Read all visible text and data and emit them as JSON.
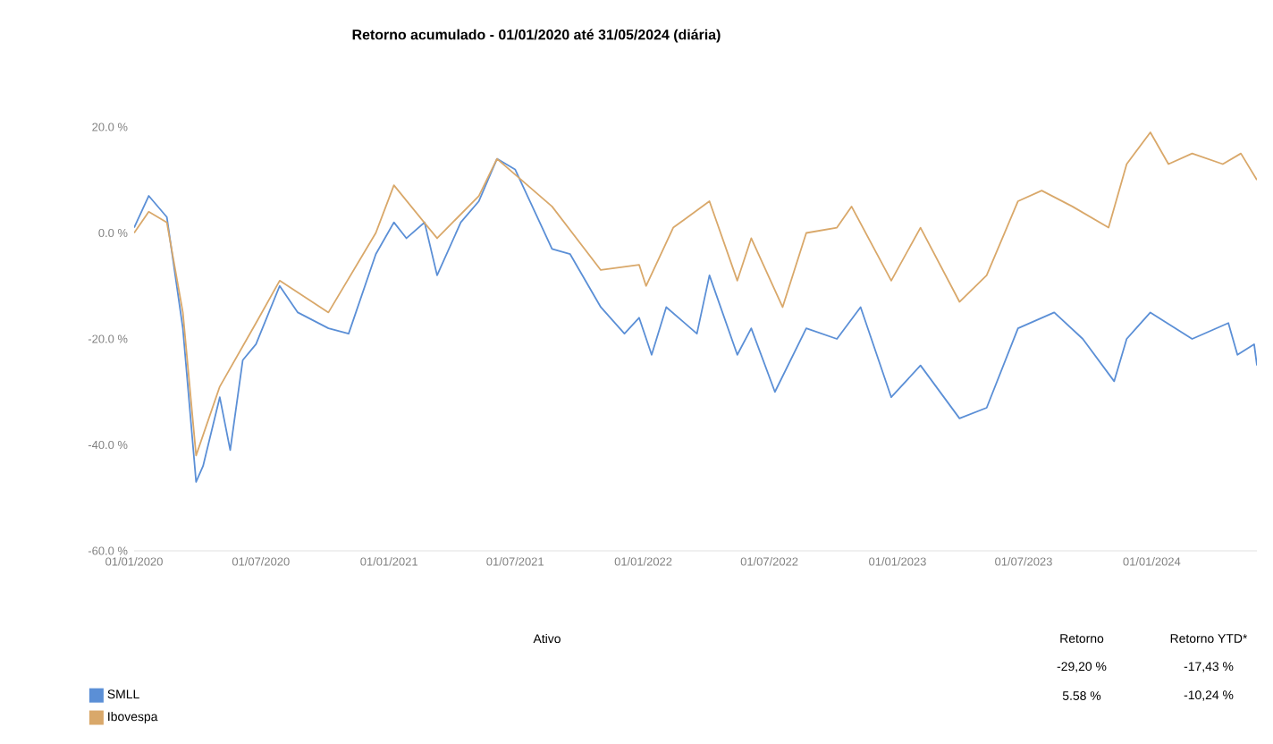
{
  "chart_data": {
    "type": "line",
    "title": "Retorno acumulado - 01/01/2020 até 31/05/2024 (diária)",
    "x": [
      "2020-01-01",
      "2020-01-22",
      "2020-02-17",
      "2020-03-11",
      "2020-03-30",
      "2020-04-09",
      "2020-05-03",
      "2020-05-18",
      "2020-06-05",
      "2020-06-24",
      "2020-07-28",
      "2020-08-23",
      "2020-10-06",
      "2020-11-04",
      "2020-12-13",
      "2021-01-08",
      "2021-01-26",
      "2021-02-21",
      "2021-03-11",
      "2021-04-14",
      "2021-05-10",
      "2021-06-05",
      "2021-07-01",
      "2021-08-23",
      "2021-09-18",
      "2021-11-01",
      "2021-12-05",
      "2021-12-26",
      "2022-01-13",
      "2022-02-03",
      "2022-03-19",
      "2022-04-06",
      "2022-05-16",
      "2022-06-05",
      "2022-07-09",
      "2022-08-23",
      "2022-10-06",
      "2022-11-09",
      "2022-12-23",
      "2023-02-03",
      "2023-03-31",
      "2023-05-09",
      "2023-06-23",
      "2023-08-14",
      "2023-09-24",
      "2023-11-08",
      "2023-11-26",
      "2023-12-30",
      "2024-02-28",
      "2024-04-20",
      "2024-05-03",
      "2024-05-27",
      "2024-05-31"
    ],
    "series": [
      {
        "name": "SMLL",
        "color": "#5b8fd6",
        "values": [
          1,
          7,
          3,
          -18,
          -47,
          -44,
          -31,
          -41,
          -24,
          -21,
          -10,
          -15,
          -18,
          -19,
          -4,
          2,
          -1,
          2,
          -8,
          2,
          6,
          14,
          12,
          -3,
          -4,
          -14,
          -19,
          -16,
          -23,
          -14,
          -19,
          -8,
          -23,
          -18,
          -30,
          -18,
          -20,
          -14,
          -31,
          -25,
          -35,
          -33,
          -18,
          -15,
          -20,
          -28,
          -20,
          -15,
          -20,
          -17,
          -23,
          -21,
          -25
        ]
      },
      {
        "name": "Ibovespa",
        "color": "#d9a86a",
        "x": [
          "2020-01-01",
          "2020-01-22",
          "2020-02-17",
          "2020-03-11",
          "2020-03-30",
          "2020-05-03",
          "2020-06-24",
          "2020-07-28",
          "2020-10-06",
          "2020-12-13",
          "2021-01-08",
          "2021-03-11",
          "2021-05-10",
          "2021-06-05",
          "2021-08-23",
          "2021-11-01",
          "2021-12-26",
          "2022-01-05",
          "2022-02-13",
          "2022-04-06",
          "2022-05-16",
          "2022-06-05",
          "2022-07-20",
          "2022-08-23",
          "2022-10-06",
          "2022-10-27",
          "2022-12-23",
          "2023-02-03",
          "2023-03-31",
          "2023-05-09",
          "2023-06-23",
          "2023-07-27",
          "2023-09-09",
          "2023-10-31",
          "2023-11-26",
          "2023-12-30",
          "2024-01-25",
          "2024-02-28",
          "2024-04-12",
          "2024-05-08",
          "2024-05-31"
        ],
        "values": [
          0,
          4,
          2,
          -15,
          -42,
          -29,
          -17,
          -9,
          -15,
          0,
          9,
          -1,
          7,
          14,
          5,
          -7,
          -6,
          -10,
          1,
          6,
          -9,
          -1,
          -14,
          0,
          1,
          5,
          -9,
          1,
          -13,
          -8,
          6,
          8,
          5,
          1,
          13,
          19,
          13,
          15,
          13,
          15,
          10
        ]
      }
    ],
    "xticks": [
      {
        "value": "2020-01-01",
        "label": "01/01/2020"
      },
      {
        "value": "2020-07-01",
        "label": "01/07/2020"
      },
      {
        "value": "2021-01-01",
        "label": "01/01/2021"
      },
      {
        "value": "2021-07-01",
        "label": "01/07/2021"
      },
      {
        "value": "2022-01-01",
        "label": "01/01/2022"
      },
      {
        "value": "2022-07-01",
        "label": "01/07/2022"
      },
      {
        "value": "2023-01-01",
        "label": "01/01/2023"
      },
      {
        "value": "2023-07-01",
        "label": "01/07/2023"
      },
      {
        "value": "2024-01-01",
        "label": "01/01/2024"
      }
    ],
    "xlim": [
      "2020-01-01",
      "2024-05-31"
    ],
    "ylim": [
      -60,
      20
    ],
    "yticks": [
      {
        "value": -60,
        "label": "-60.0 %"
      },
      {
        "value": -40,
        "label": "-40.0 %"
      },
      {
        "value": -20,
        "label": "-20.0 %"
      },
      {
        "value": 0,
        "label": "0.0 %"
      },
      {
        "value": 20,
        "label": "20.0 %"
      }
    ],
    "grid": false,
    "legend": "bottom left",
    "marker": "none",
    "line_style": "solid",
    "annotations": [
      "Ativo",
      "Retorno",
      "Retorno YTD*",
      "-29,20 %",
      "-17,43 %",
      "5.58 %",
      "-10,24 %"
    ]
  }
}
